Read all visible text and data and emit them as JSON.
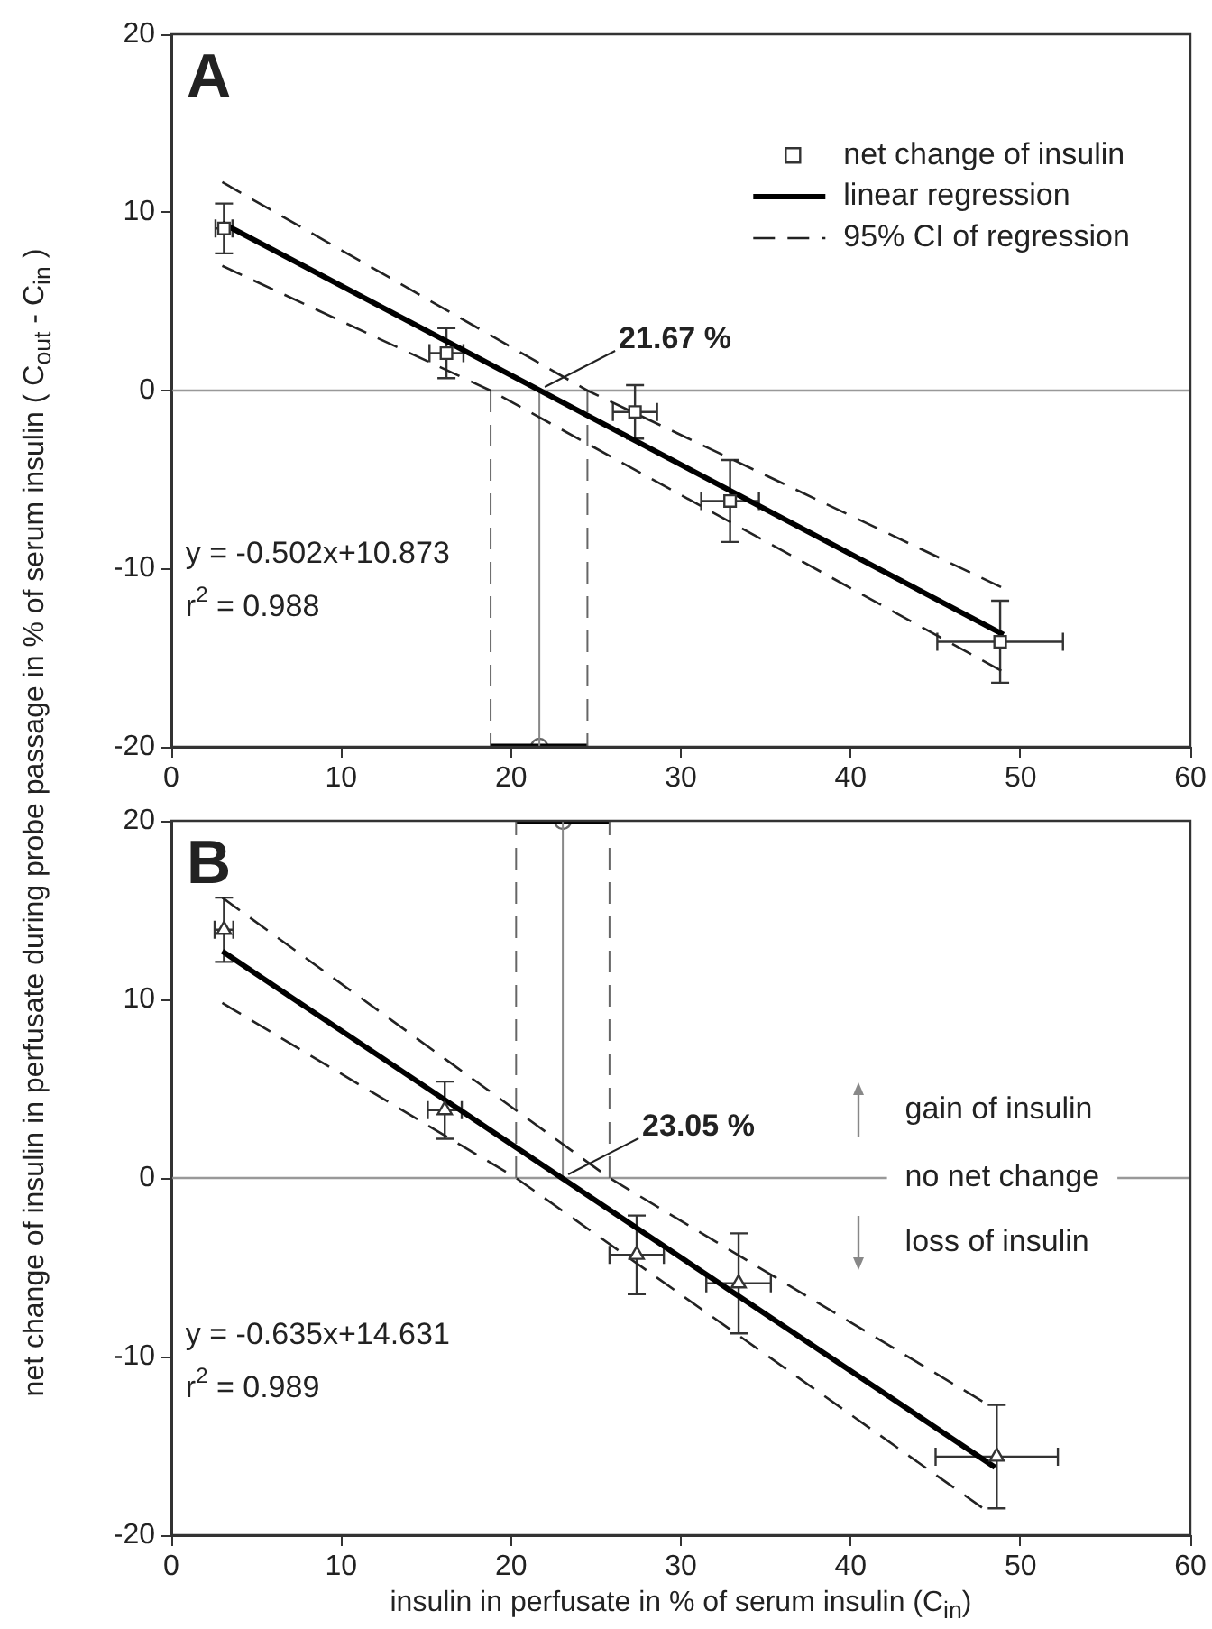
{
  "chart_data": [
    {
      "type": "scatter",
      "ylabel": "net change of insulin in perfusate during probe passage in % of serum insulin ( C$_{out}$ - C$_{in}$ )",
      "xlim": [
        0,
        60
      ],
      "xticks": [
        0,
        10,
        20,
        30,
        40,
        50,
        60
      ],
      "ylim": [
        -20,
        20
      ],
      "yticks": [
        -20,
        -10,
        0,
        10,
        20
      ],
      "grid": false,
      "legend": "top right",
      "series": [
        {
          "name": "net change of insulin",
          "type": "scatter",
          "marker": "square",
          "color": "#333333",
          "x": [
            3.1,
            16.2,
            27.3,
            32.9,
            48.8
          ],
          "values": [
            9.1,
            2.1,
            -1.2,
            -6.2,
            -14.1
          ],
          "errors": [
            1.4,
            1.4,
            1.5,
            2.3,
            2.3
          ],
          "xerrors": [
            0.5,
            1.0,
            1.3,
            1.7,
            3.7
          ]
        },
        {
          "name": "linear regression",
          "type": "line",
          "line_style": "solid",
          "color": "#000000",
          "x": [
            3,
            49
          ],
          "values": [
            9.4,
            -13.7
          ]
        },
        {
          "name": "95% CI of regression",
          "type": "line",
          "line_style": "dashed",
          "color": "#222222",
          "x": [
            3,
            24.5,
            49
          ],
          "values": [
            11.7,
            0,
            -11.1
          ]
        },
        {
          "type": "line",
          "line_style": "dashed",
          "color": "#222222",
          "x": [
            3,
            18.8,
            49
          ],
          "values": [
            7.0,
            0,
            -15.8
          ]
        },
        {
          "type": "line",
          "line_style": "dashed",
          "color": "#666666",
          "x": [
            18.8,
            18.8
          ],
          "values": [
            0,
            -20
          ]
        },
        {
          "type": "line",
          "line_style": "dashed",
          "color": "#666666",
          "x": [
            24.5,
            24.5
          ],
          "values": [
            0,
            -20
          ]
        },
        {
          "type": "line",
          "line_style": "solid",
          "color": "#888888",
          "x": [
            21.67,
            21.67
          ],
          "values": [
            0,
            -20
          ]
        },
        {
          "type": "line",
          "line_style": "solid",
          "color": "#000000",
          "x": [
            18.8,
            24.5
          ],
          "values": [
            -20,
            -20
          ]
        },
        {
          "type": "scatter",
          "marker": "circle",
          "color": "#666666",
          "x": [
            21.67
          ],
          "values": [
            -20
          ]
        }
      ],
      "ref_lines": [
        {
          "axis": "y",
          "value": 0,
          "color": "#999999"
        }
      ],
      "annotations": [
        "A",
        "y = -0.502x+10.873",
        "r$^{2}$ = 0.988",
        {
          "text": "21.67 %",
          "x": 21.67,
          "y": 0
        }
      ]
    },
    {
      "type": "scatter",
      "xlabel": "insulin in perfusate in % of serum insulin (C$_{in}$)",
      "xlim": [
        0,
        60
      ],
      "xticks": [
        0,
        10,
        20,
        30,
        40,
        50,
        60
      ],
      "ylim": [
        -20,
        20
      ],
      "yticks": [
        -20,
        -10,
        0,
        10,
        20
      ],
      "grid": false,
      "series": [
        {
          "type": "scatter",
          "marker": "triangle",
          "color": "#333333",
          "x": [
            3.1,
            16.1,
            27.4,
            33.4,
            48.6
          ],
          "values": [
            13.9,
            3.8,
            -4.3,
            -5.9,
            -15.6
          ],
          "errors": [
            1.8,
            1.6,
            2.2,
            2.8,
            2.9
          ],
          "xerrors": [
            0.55,
            1.0,
            1.6,
            1.9,
            3.6
          ]
        },
        {
          "type": "line",
          "line_style": "solid",
          "color": "#000000",
          "x": [
            3,
            48.5
          ],
          "values": [
            12.7,
            -16.2
          ]
        },
        {
          "type": "line",
          "line_style": "dashed",
          "color": "#222222",
          "x": [
            3,
            25.8,
            48.1
          ],
          "values": [
            15.7,
            0,
            -12.7
          ]
        },
        {
          "type": "line",
          "line_style": "dashed",
          "color": "#222222",
          "x": [
            3,
            20.3,
            48.1
          ],
          "values": [
            9.8,
            0,
            -18.7
          ]
        },
        {
          "type": "line",
          "line_style": "dashed",
          "color": "#666666",
          "x": [
            20.3,
            20.3
          ],
          "values": [
            0,
            20
          ]
        },
        {
          "type": "line",
          "line_style": "dashed",
          "color": "#666666",
          "x": [
            25.8,
            25.8
          ],
          "values": [
            0,
            20
          ]
        },
        {
          "type": "line",
          "line_style": "solid",
          "color": "#888888",
          "x": [
            23.05,
            23.05
          ],
          "values": [
            0,
            20
          ]
        },
        {
          "type": "line",
          "line_style": "solid",
          "color": "#000000",
          "x": [
            20.3,
            25.8
          ],
          "values": [
            20,
            20
          ]
        },
        {
          "type": "scatter",
          "marker": "circle",
          "color": "#666666",
          "x": [
            23.05
          ],
          "values": [
            20
          ]
        }
      ],
      "ref_lines": [
        {
          "axis": "y",
          "value": 0,
          "color": "#999999",
          "label": "no net change"
        }
      ],
      "annotations": [
        "B",
        "y = -0.635x+14.631",
        "r$^{2}$ = 0.989",
        "gain of insulin",
        "loss of insulin",
        {
          "text": "23.05 %",
          "x": 23.05,
          "y": 0
        }
      ]
    }
  ]
}
